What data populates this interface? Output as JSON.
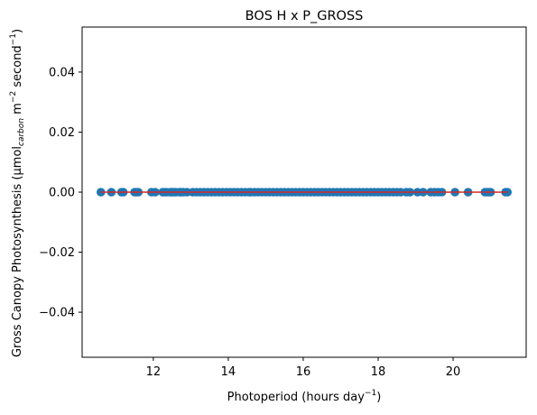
{
  "chart_data": {
    "type": "scatter",
    "title": "BOS H x P_GROSS",
    "xlabel": {
      "prefix": "Photoperiod (hours day",
      "sup": "−1",
      "suffix": ")"
    },
    "ylabel": {
      "prefix": "Gross Canopy Photosynthesis (µmol",
      "sub": "carbon",
      "middle": " m",
      "sup1": "−2",
      "middle2": " second",
      "sup2": "−1",
      "suffix": ")"
    },
    "xlim": [
      10.1,
      21.95
    ],
    "ylim": [
      -0.055,
      0.055
    ],
    "x_ticks": [
      12,
      14,
      16,
      18,
      20
    ],
    "x_tick_labels": [
      "12",
      "14",
      "16",
      "18",
      "20"
    ],
    "y_ticks": [
      -0.04,
      -0.02,
      0.0,
      0.02,
      0.04
    ],
    "y_tick_labels": [
      "−0.04",
      "−0.02",
      "0.00",
      "0.02",
      "0.04"
    ],
    "grid": false,
    "marker_color": "#1f77b4",
    "fit_line_color": "#d62728",
    "fit_line": {
      "x": [
        10.6,
        21.45
      ],
      "y": [
        0.0,
        0.0
      ]
    },
    "points": {
      "x": [
        10.6,
        10.88,
        11.15,
        11.2,
        11.5,
        11.55,
        11.6,
        11.95,
        12.05,
        12.25,
        12.3,
        12.35,
        12.45,
        12.5,
        12.55,
        12.6,
        12.7,
        12.75,
        12.8,
        12.9,
        13.05,
        13.15,
        13.25,
        13.35,
        13.45,
        13.55,
        13.65,
        13.75,
        13.85,
        13.95,
        14.05,
        14.15,
        14.25,
        14.35,
        14.45,
        14.55,
        14.6,
        14.7,
        14.8,
        14.9,
        15.0,
        15.1,
        15.2,
        15.3,
        15.4,
        15.5,
        15.6,
        15.7,
        15.8,
        15.9,
        16.0,
        16.1,
        16.2,
        16.3,
        16.4,
        16.5,
        16.6,
        16.7,
        16.8,
        16.9,
        17.0,
        17.1,
        17.2,
        17.3,
        17.4,
        17.5,
        17.6,
        17.7,
        17.8,
        17.9,
        18.0,
        18.1,
        18.2,
        18.3,
        18.4,
        18.5,
        18.6,
        18.75,
        18.85,
        19.05,
        19.2,
        19.4,
        19.5,
        19.6,
        19.7,
        20.05,
        20.4,
        20.85,
        20.9,
        20.95,
        21.0,
        21.4,
        21.45
      ],
      "y": [
        0,
        0,
        0,
        0,
        0,
        0,
        0,
        0,
        0,
        0,
        0,
        0,
        0,
        0,
        0,
        0,
        0,
        0,
        0,
        0,
        0,
        0,
        0,
        0,
        0,
        0,
        0,
        0,
        0,
        0,
        0,
        0,
        0,
        0,
        0,
        0,
        0,
        0,
        0,
        0,
        0,
        0,
        0,
        0,
        0,
        0,
        0,
        0,
        0,
        0,
        0,
        0,
        0,
        0,
        0,
        0,
        0,
        0,
        0,
        0,
        0,
        0,
        0,
        0,
        0,
        0,
        0,
        0,
        0,
        0,
        0,
        0,
        0,
        0,
        0,
        0,
        0,
        0,
        0,
        0,
        0,
        0,
        0,
        0,
        0,
        0,
        0,
        0,
        0,
        0,
        0,
        0,
        0
      ]
    }
  }
}
